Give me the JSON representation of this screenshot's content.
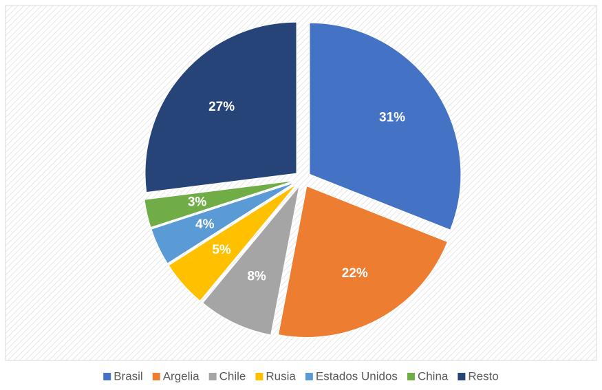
{
  "chart_data": {
    "type": "pie",
    "categories": [
      "Brasil",
      "Argelia",
      "Chile",
      "Rusia",
      "Estados Unidos",
      "China",
      "Resto"
    ],
    "values": [
      31,
      22,
      8,
      5,
      4,
      3,
      27
    ],
    "value_labels": [
      "31%",
      "22%",
      "8%",
      "5%",
      "4%",
      "3%",
      "27%"
    ],
    "colors": [
      "#4472c4",
      "#ed7d31",
      "#a5a5a5",
      "#ffc000",
      "#5b9bd5",
      "#70ad47",
      "#264478"
    ],
    "legend": "bottom"
  }
}
